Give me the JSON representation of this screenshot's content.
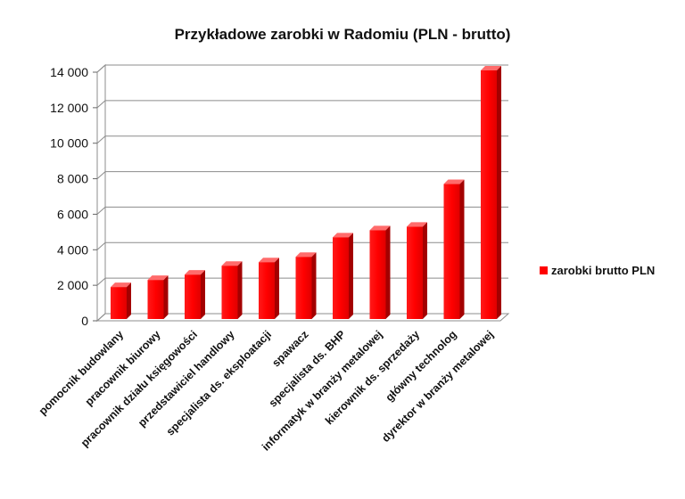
{
  "chart_data": {
    "type": "bar",
    "title": "Przykładowe zarobki w Radomiu (PLN - brutto)",
    "xlabel": "",
    "ylabel": "",
    "ylim": [
      0,
      14000
    ],
    "yticks": [
      0,
      2000,
      4000,
      6000,
      8000,
      10000,
      12000,
      14000
    ],
    "ytick_labels": [
      "0",
      "2 000",
      "4 000",
      "6 000",
      "8 000",
      "10 000",
      "12 000",
      "14 000"
    ],
    "grid": true,
    "legend_position": "right",
    "categories": [
      "pomocnik budowlany",
      "pracownik biurowy",
      "pracownik działu księgowości",
      "przedstawiciel handlowy",
      "specjalista ds. eksploatacji",
      "spawacz",
      "specjalista ds. BHP",
      "informatyk w branży metalowej",
      "kierownik ds. sprzedaży",
      "główny technolog",
      "dyrektor w branży metalowej"
    ],
    "series": [
      {
        "name": "zarobki brutto PLN",
        "color": "#ff0000",
        "values": [
          1800,
          2200,
          2500,
          3000,
          3200,
          3500,
          4600,
          5000,
          5200,
          7600,
          14000
        ]
      }
    ]
  }
}
